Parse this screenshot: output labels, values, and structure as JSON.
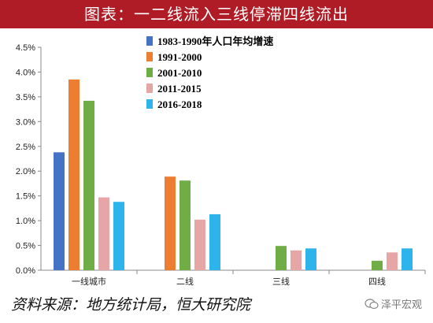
{
  "title": "图表：一二线流入三线停滞四线流出",
  "source": "资料来源：地方统计局，恒大研究院",
  "watermark": "泽平宏观",
  "colors": {
    "title_bg": "#b01c25",
    "series": [
      "#4472c4",
      "#ed7d31",
      "#70ad47",
      "#e7a6a6",
      "#2db4ea"
    ]
  },
  "chart_data": {
    "type": "bar",
    "categories": [
      "一线城市",
      "二线",
      "三线",
      "四线"
    ],
    "series": [
      {
        "name": "1983-1990年人口年均增速",
        "values": [
          2.38,
          null,
          null,
          null
        ]
      },
      {
        "name": "1991-2000",
        "values": [
          3.85,
          1.89,
          null,
          null
        ]
      },
      {
        "name": "2001-2010",
        "values": [
          3.42,
          1.81,
          0.49,
          0.19
        ]
      },
      {
        "name": "2011-2015",
        "values": [
          1.47,
          1.02,
          0.4,
          0.36
        ]
      },
      {
        "name": "2016-2018",
        "values": [
          1.38,
          1.13,
          0.44,
          0.44
        ]
      }
    ],
    "ylim": [
      0,
      4.5
    ],
    "yticks": [
      "0.0%",
      "0.5%",
      "1.0%",
      "1.5%",
      "2.0%",
      "2.5%",
      "3.0%",
      "3.5%",
      "4.0%",
      "4.5%"
    ],
    "legend_position": "top-center",
    "grid": false
  }
}
